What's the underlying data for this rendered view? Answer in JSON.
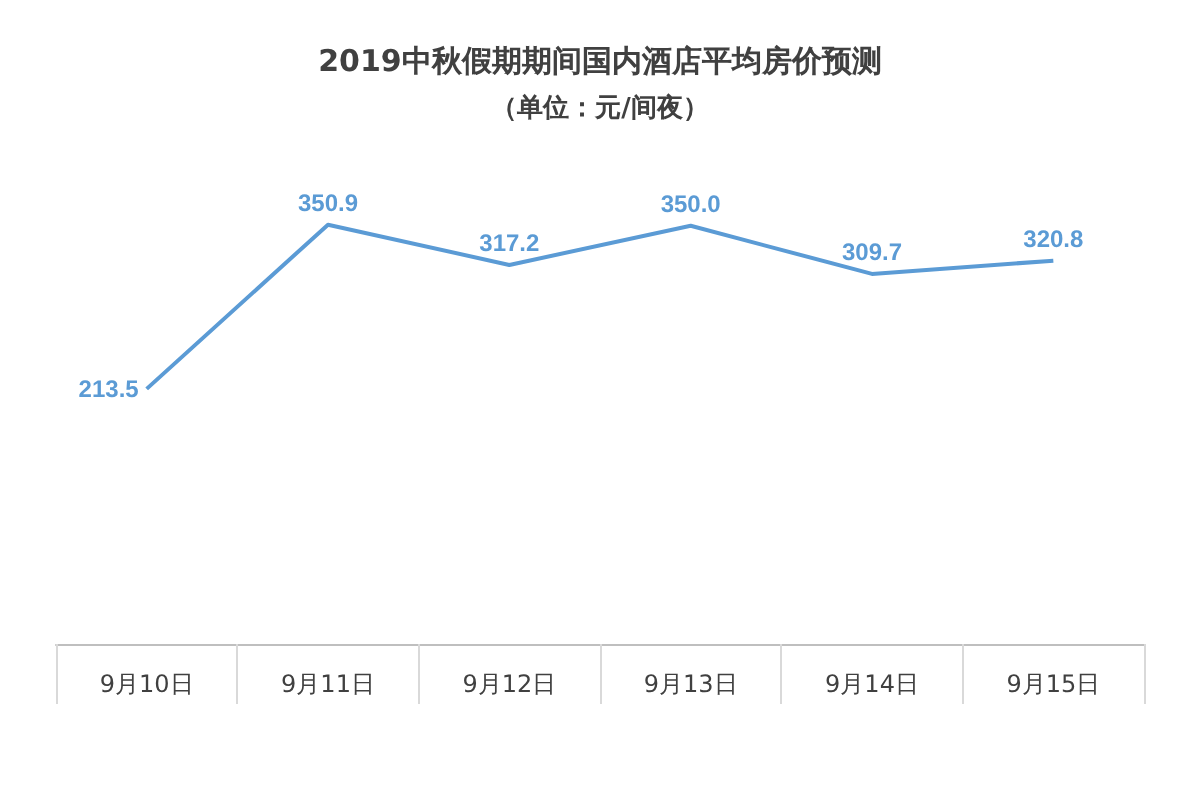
{
  "chart_data": {
    "type": "line",
    "title": "2019中秋假期期间国内酒店平均房价预测",
    "subtitle": "（单位：元/间夜）",
    "categories": [
      "9月10日",
      "9月11日",
      "9月12日",
      "9月13日",
      "9月14日",
      "9月15日"
    ],
    "series": [
      {
        "color": "#5b9bd5",
        "values": [
          213.5,
          350.9,
          317.2,
          350.0,
          309.7,
          320.8
        ],
        "value_labels": [
          "213.5",
          "350.9",
          "317.2",
          "350.0",
          "309.7",
          "320.8"
        ]
      }
    ]
  }
}
